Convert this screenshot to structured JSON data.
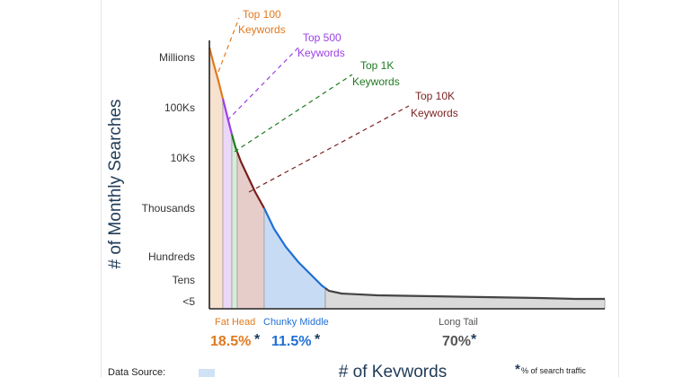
{
  "chart_data": {
    "type": "area",
    "ylabel": "# of Monthly Searches",
    "xlabel": "# of Keywords",
    "yticks": [
      "Millions",
      "100Ks",
      "10Ks",
      "Thousands",
      "Hundreds",
      "Tens",
      "<5"
    ],
    "grid": false,
    "callouts": [
      {
        "line1": "Top 100",
        "line2": "Keywords",
        "color": "#e07a1f"
      },
      {
        "line1": "Top 500",
        "line2": "Keywords",
        "color": "#9b3fe6"
      },
      {
        "line1": "Top 1K",
        "line2": "Keywords",
        "color": "#1f7a1f"
      },
      {
        "line1": "Top 10K",
        "line2": "Keywords",
        "color": "#7a1f1f"
      }
    ],
    "segments": [
      {
        "label": "Fat Head",
        "percent": "18.5%",
        "color": "#e07a1f"
      },
      {
        "label": "Chunky Middle",
        "percent": "11.5%",
        "color": "#1f6fd6"
      },
      {
        "label": "Long Tail",
        "percent": "70%",
        "color": "#555555"
      }
    ],
    "asterisk": "*",
    "footnote": "% of search traffic"
  },
  "footer": {
    "data_source_label": "Data Source:"
  }
}
